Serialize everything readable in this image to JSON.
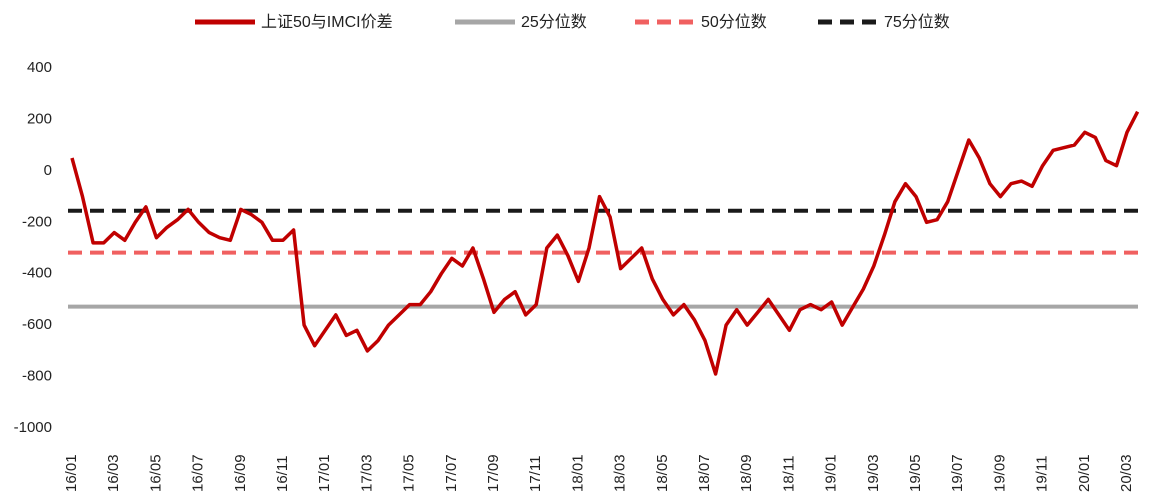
{
  "chart_data": {
    "type": "line",
    "categories": [
      "16/01",
      null,
      null,
      null,
      "16/03",
      null,
      null,
      null,
      "16/05",
      null,
      null,
      null,
      "16/07",
      null,
      null,
      null,
      "16/09",
      null,
      null,
      null,
      "16/11",
      null,
      null,
      null,
      "17/01",
      null,
      null,
      null,
      "17/03",
      null,
      null,
      null,
      "17/05",
      null,
      null,
      null,
      "17/07",
      null,
      null,
      null,
      "17/09",
      null,
      null,
      null,
      "17/11",
      null,
      null,
      null,
      "18/01",
      null,
      null,
      null,
      "18/03",
      null,
      null,
      null,
      "18/05",
      null,
      null,
      null,
      "18/07",
      null,
      null,
      null,
      "18/09",
      null,
      null,
      null,
      "18/11",
      null,
      null,
      null,
      "19/01",
      null,
      null,
      null,
      "19/03",
      null,
      null,
      null,
      "19/05",
      null,
      null,
      null,
      "19/07",
      null,
      null,
      null,
      "19/09",
      null,
      null,
      null,
      "19/11",
      null,
      null,
      null,
      "20/01",
      null,
      null,
      null,
      "20/03",
      null
    ],
    "series": [
      {
        "name": "上证50与IMCI价差",
        "color": "#c00000",
        "values": [
          50,
          -100,
          -280,
          -280,
          -240,
          -270,
          -200,
          -140,
          -260,
          -220,
          -190,
          -150,
          -200,
          -240,
          -260,
          -270,
          -150,
          -170,
          -200,
          -270,
          -270,
          -230,
          -600,
          -680,
          -620,
          -560,
          -640,
          -620,
          -700,
          -660,
          -600,
          -560,
          -520,
          -520,
          -470,
          -400,
          -340,
          -370,
          -300,
          -420,
          -550,
          -500,
          -470,
          -560,
          -520,
          -300,
          -250,
          -330,
          -430,
          -300,
          -100,
          -180,
          -380,
          -340,
          -300,
          -420,
          -500,
          -560,
          -520,
          -580,
          -660,
          -790,
          -600,
          -540,
          -600,
          -550,
          -500,
          -560,
          -620,
          -540,
          -520,
          -540,
          -510,
          -600,
          -530,
          -460,
          -370,
          -250,
          -120,
          -50,
          -100,
          -200,
          -190,
          -120,
          0,
          120,
          50,
          -50,
          -100,
          -50,
          -40,
          -60,
          20,
          80,
          90,
          100,
          150,
          130,
          40,
          20,
          150,
          230
        ]
      }
    ],
    "reference_lines": [
      {
        "name": "25分位数",
        "value": -528,
        "color": "#a6a6a6",
        "dashed": false
      },
      {
        "name": "50分位数",
        "value": -318,
        "color": "#f06060",
        "dashed": true
      },
      {
        "name": "75分位数",
        "value": -155,
        "color": "#1a1a1a",
        "dashed": true
      }
    ],
    "ylim": [
      -1000,
      400
    ],
    "yticks": [
      -1000,
      -800,
      -600,
      -400,
      -200,
      0,
      200,
      400
    ],
    "grid": false
  }
}
